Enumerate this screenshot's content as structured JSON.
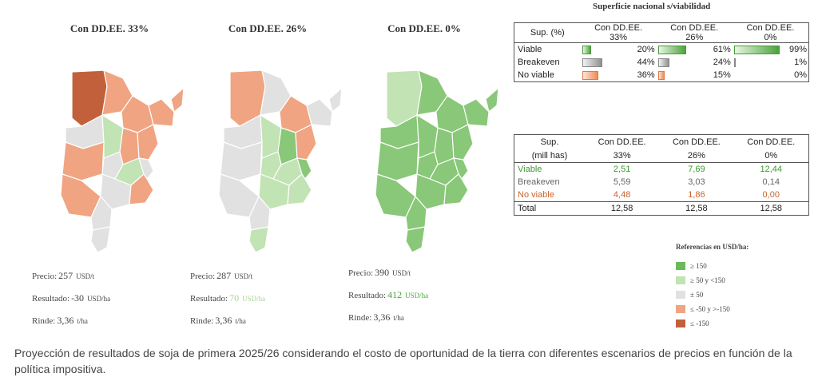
{
  "maps": [
    {
      "title": "Con DD.EE. 33%",
      "price_label": "Precio:",
      "price": "257",
      "price_unit": "USD/t",
      "result_label": "Resultado:",
      "result": "-30",
      "result_unit": "USD/ha",
      "yield_label": "Rinde:",
      "yield": "3,36",
      "yield_unit": "t/ha"
    },
    {
      "title": "Con DD.EE. 26%",
      "price_label": "Precio:",
      "price": "287",
      "price_unit": "USD/t",
      "result_label": "Resultado:",
      "result": "70",
      "result_unit": "USD/ha",
      "yield_label": "Rinde:",
      "yield": "3,36",
      "yield_unit": "t/ha"
    },
    {
      "title": "Con DD.EE. 0%",
      "price_label": "Precio:",
      "price": "390",
      "price_unit": "USD/t",
      "result_label": "Resultado:",
      "result": "412",
      "result_unit": "USD/ha",
      "yield_label": "Rinde:",
      "yield": "3,36",
      "yield_unit": "t/ha"
    }
  ],
  "table1": {
    "title": "Superficie nacional s/viabilidad",
    "header_label": "Sup. (%)",
    "columns": [
      [
        "Con DD.EE.",
        "33%"
      ],
      [
        "Con DD.EE.",
        "26%"
      ],
      [
        "Con DD.EE.",
        "0%"
      ]
    ],
    "rows": [
      {
        "label": "Viable",
        "values": [
          "20%",
          "61%",
          "99%"
        ],
        "fractions": [
          0.2,
          0.61,
          0.99
        ]
      },
      {
        "label": "Breakeven",
        "values": [
          "44%",
          "24%",
          "1%"
        ],
        "fractions": [
          0.44,
          0.24,
          0.01
        ]
      },
      {
        "label": "No viable",
        "values": [
          "36%",
          "15%",
          "0%"
        ],
        "fractions": [
          0.36,
          0.15,
          0.0
        ]
      }
    ]
  },
  "table2": {
    "header_label_1": "Sup.",
    "header_label_2": "(mill has)",
    "columns": [
      [
        "Con DD.EE.",
        "33%"
      ],
      [
        "Con DD.EE.",
        "26%"
      ],
      [
        "Con DD.EE.",
        "0%"
      ]
    ],
    "rows": [
      {
        "label": "Viable",
        "values": [
          "2,51",
          "7,69",
          "12,44"
        ]
      },
      {
        "label": "Breakeven",
        "values": [
          "5,59",
          "3,03",
          "0,14"
        ]
      },
      {
        "label": "No viable",
        "values": [
          "4,48",
          "1,86",
          "0,00"
        ]
      },
      {
        "label": "Total",
        "values": [
          "12,58",
          "12,58",
          "12,58"
        ]
      }
    ]
  },
  "legend": {
    "title": "Referencias en USD/ha:",
    "items": [
      {
        "label": "≥ 150",
        "color": "#6ab95a"
      },
      {
        "label": "≥ 50 y <150",
        "color": "#c2e3b4"
      },
      {
        "label": "± 50",
        "color": "#e1e1e1"
      },
      {
        "label": "≤ -50 y >-150",
        "color": "#f0a481"
      },
      {
        "label": "≤ -150",
        "color": "#c2603c"
      }
    ]
  },
  "caption": "Proyección de resultados de soja de primera 2025/26 considerando el costo de oportunidad de la tierra con diferentes escenarios de precios en función de la política impositiva.",
  "colors": {
    "dark_orange": "#c2603c",
    "orange": "#f0a481",
    "gray": "#e1e1e1",
    "light_green": "#c2e3b4",
    "green": "#89c779",
    "border": "#ffffff"
  }
}
